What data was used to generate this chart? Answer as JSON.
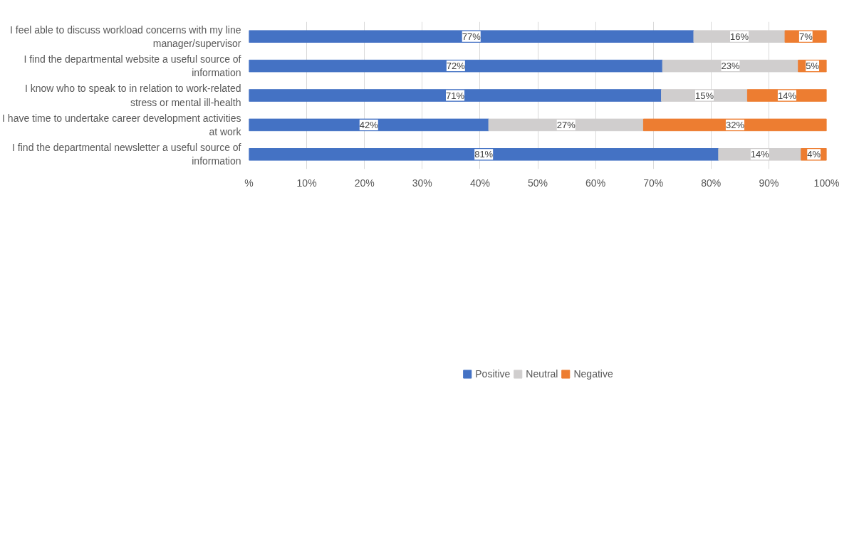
{
  "chart_data": {
    "type": "bar",
    "orientation": "horizontal",
    "stacked": true,
    "categories": [
      "I feel able to discuss workload concerns with my line manager/supervisor",
      "I find the departmental website a useful source of information",
      "I know who to speak to in relation to work-related stress or mental ill-health",
      "I have time to undertake career development activities at work",
      "I find the departmental newsletter a useful source of information"
    ],
    "series": [
      {
        "name": "Positive",
        "color": "#4472c4",
        "values": [
          77.0,
          71.6,
          71.4,
          41.5,
          81.3
        ],
        "value_labels": [
          "77%",
          "72%",
          "71%",
          "42%",
          "81%"
        ]
      },
      {
        "name": "Neutral",
        "color": "#d0cece",
        "values": [
          15.8,
          23.5,
          14.9,
          26.8,
          14.3
        ],
        "value_labels": [
          "16%",
          "23%",
          "15%",
          "27%",
          "14%"
        ]
      },
      {
        "name": "Negative",
        "color": "#ed7d31",
        "values": [
          7.2,
          4.9,
          13.7,
          31.7,
          4.4
        ],
        "value_labels": [
          "7%",
          "5%",
          "14%",
          "32%",
          "4%"
        ]
      }
    ],
    "xlim": [
      0,
      100
    ],
    "xticks": [
      {
        "value": 0,
        "label": "%"
      },
      {
        "value": 10,
        "label": "10%"
      },
      {
        "value": 20,
        "label": "20%"
      },
      {
        "value": 30,
        "label": "30%"
      },
      {
        "value": 40,
        "label": "40%"
      },
      {
        "value": 50,
        "label": "50%"
      },
      {
        "value": 60,
        "label": "60%"
      },
      {
        "value": 70,
        "label": "70%"
      },
      {
        "value": 80,
        "label": "80%"
      },
      {
        "value": 90,
        "label": "90%"
      },
      {
        "value": 100,
        "label": "100%"
      }
    ],
    "grid": "x",
    "legend": "bottom"
  }
}
